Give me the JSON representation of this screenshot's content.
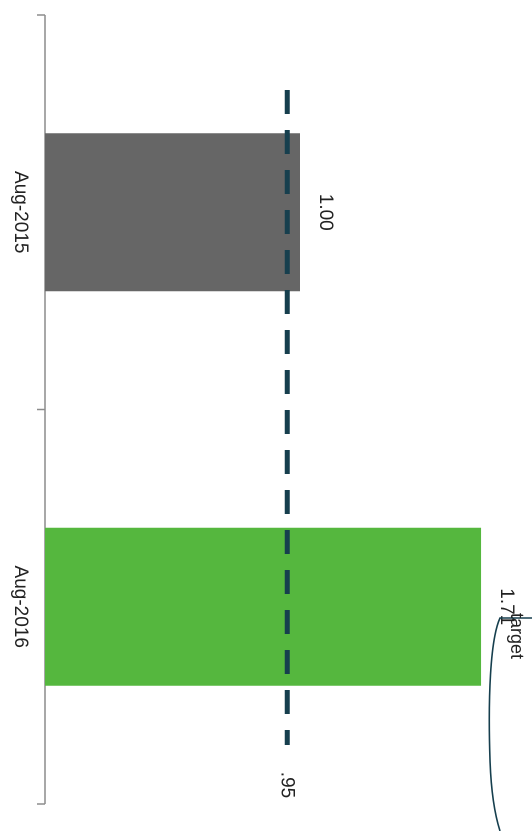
{
  "chart_data": {
    "type": "bar",
    "orientation": "horizontal",
    "categories": [
      "Aug-2015",
      "Aug-2016"
    ],
    "values": [
      1.0,
      1.71
    ],
    "value_labels": [
      "1.00",
      "1.71"
    ],
    "colors": [
      "#666666",
      "#55b73e"
    ],
    "xlim": [
      0,
      2
    ],
    "reference_line": {
      "value": 0.95,
      "label": ".95",
      "color": "#163f4e",
      "style": "dashed"
    },
    "callout": {
      "text": "target"
    },
    "title": "",
    "xlabel": "",
    "ylabel": ""
  }
}
